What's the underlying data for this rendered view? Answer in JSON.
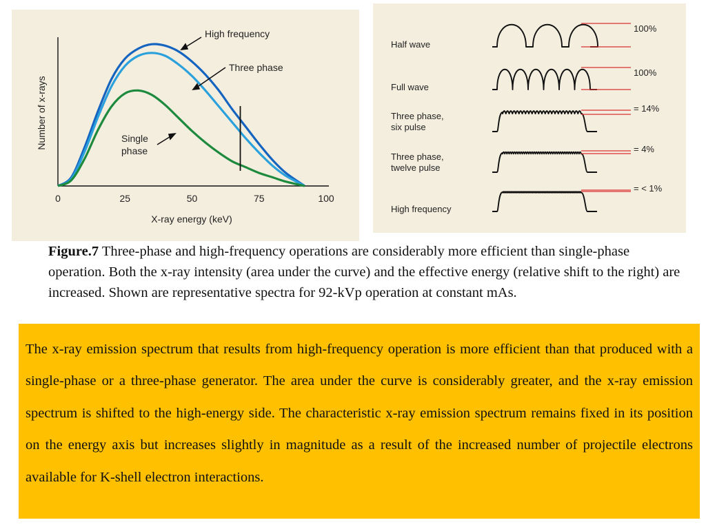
{
  "spectrum_figure": {
    "xlabel": "X-ray energy (keV)",
    "ylabel": "Number of x-rays",
    "x_ticks": [
      "0",
      "25",
      "50",
      "75",
      "100"
    ],
    "labels": {
      "high_frequency": "High frequency",
      "three_phase": "Three phase",
      "single_phase_line1": "Single",
      "single_phase_line2": "phase"
    },
    "colors": {
      "high_frequency": "#1565c0",
      "three_phase": "#2aa1dc",
      "single_phase": "#1e8a3e",
      "background": "#f4eedf"
    }
  },
  "chart_data": {
    "type": "line",
    "xlabel": "X-ray energy (keV)",
    "ylabel": "Number of x-rays",
    "xlim": [
      0,
      100
    ],
    "x_ticks": [
      0,
      25,
      50,
      75,
      100
    ],
    "y_scale": "relative intensity (no ticks)",
    "series": [
      {
        "name": "High frequency",
        "color": "#1565c0",
        "x": [
          0,
          5,
          10,
          15,
          20,
          25,
          30,
          35,
          40,
          45,
          50,
          55,
          60,
          65,
          70,
          75,
          80,
          85,
          92
        ],
        "y": [
          0,
          6,
          27,
          52,
          74,
          88,
          95,
          98,
          97,
          93,
          86,
          77,
          66,
          53,
          41,
          29,
          18,
          9,
          0
        ]
      },
      {
        "name": "Three phase",
        "color": "#2aa1dc",
        "x": [
          0,
          5,
          10,
          15,
          20,
          25,
          30,
          35,
          40,
          45,
          50,
          55,
          60,
          65,
          70,
          75,
          80,
          85,
          92
        ],
        "y": [
          0,
          5,
          24,
          48,
          69,
          83,
          90,
          92,
          90,
          84,
          76,
          66,
          55,
          44,
          33,
          23,
          14,
          7,
          0
        ]
      },
      {
        "name": "Single phase",
        "color": "#1e8a3e",
        "x": [
          0,
          5,
          10,
          15,
          20,
          25,
          30,
          35,
          40,
          45,
          50,
          55,
          60,
          65,
          70,
          75,
          80,
          85,
          92
        ],
        "y": [
          0,
          4,
          19,
          39,
          55,
          64,
          66,
          63,
          56,
          47,
          38,
          30,
          23,
          17,
          13,
          9,
          6,
          3,
          0
        ]
      }
    ],
    "annotations": [
      {
        "text": "High frequency",
        "points_to": "High frequency"
      },
      {
        "text": "Three phase",
        "points_to": "Three phase"
      },
      {
        "text": "Single phase",
        "points_to": "Single phase"
      }
    ],
    "marker_line_x": 68
  },
  "waveform_figure": {
    "rows": [
      {
        "label_lines": [
          "Half wave"
        ],
        "ripple": "100%",
        "pulses": 3,
        "mode": "half"
      },
      {
        "label_lines": [
          "Full wave"
        ],
        "ripple": "100%",
        "pulses": 6,
        "mode": "full"
      },
      {
        "label_lines": [
          "Three phase,",
          "six pulse"
        ],
        "ripple": "= 14%",
        "pulses": 24,
        "mode": "ripple"
      },
      {
        "label_lines": [
          "Three phase,",
          "twelve pulse"
        ],
        "ripple": "= 4%",
        "pulses": 36,
        "mode": "ripple"
      },
      {
        "label_lines": [
          "High frequency"
        ],
        "ripple": "= < 1%",
        "pulses": 60,
        "mode": "ripple"
      }
    ],
    "colors": {
      "wave": "#111111",
      "reference": "#d93030"
    }
  },
  "caption": {
    "label": "Figure.7",
    "text": " Three-phase and high-frequency operations are considerably more efficient than single-phase operation. Both the x-ray intensity (area under the curve) and the effective energy (relative shift to the right) are increased. Shown are representative spectra for 92-kVp operation at constant mAs."
  },
  "note": {
    "text": "The x-ray emission spectrum that results from high-frequency operation is more efficient than that produced with a single-phase or a three-phase generator. The area under the curve is considerably greater, and the x-ray emission spectrum is shifted to the high-energy side. The characteristic x-ray emission spectrum remains fixed in its position on the energy axis but increases slightly in magnitude as a result of the increased number of projectile electrons available for K-shell electron interactions.",
    "background": "#ffc000"
  }
}
